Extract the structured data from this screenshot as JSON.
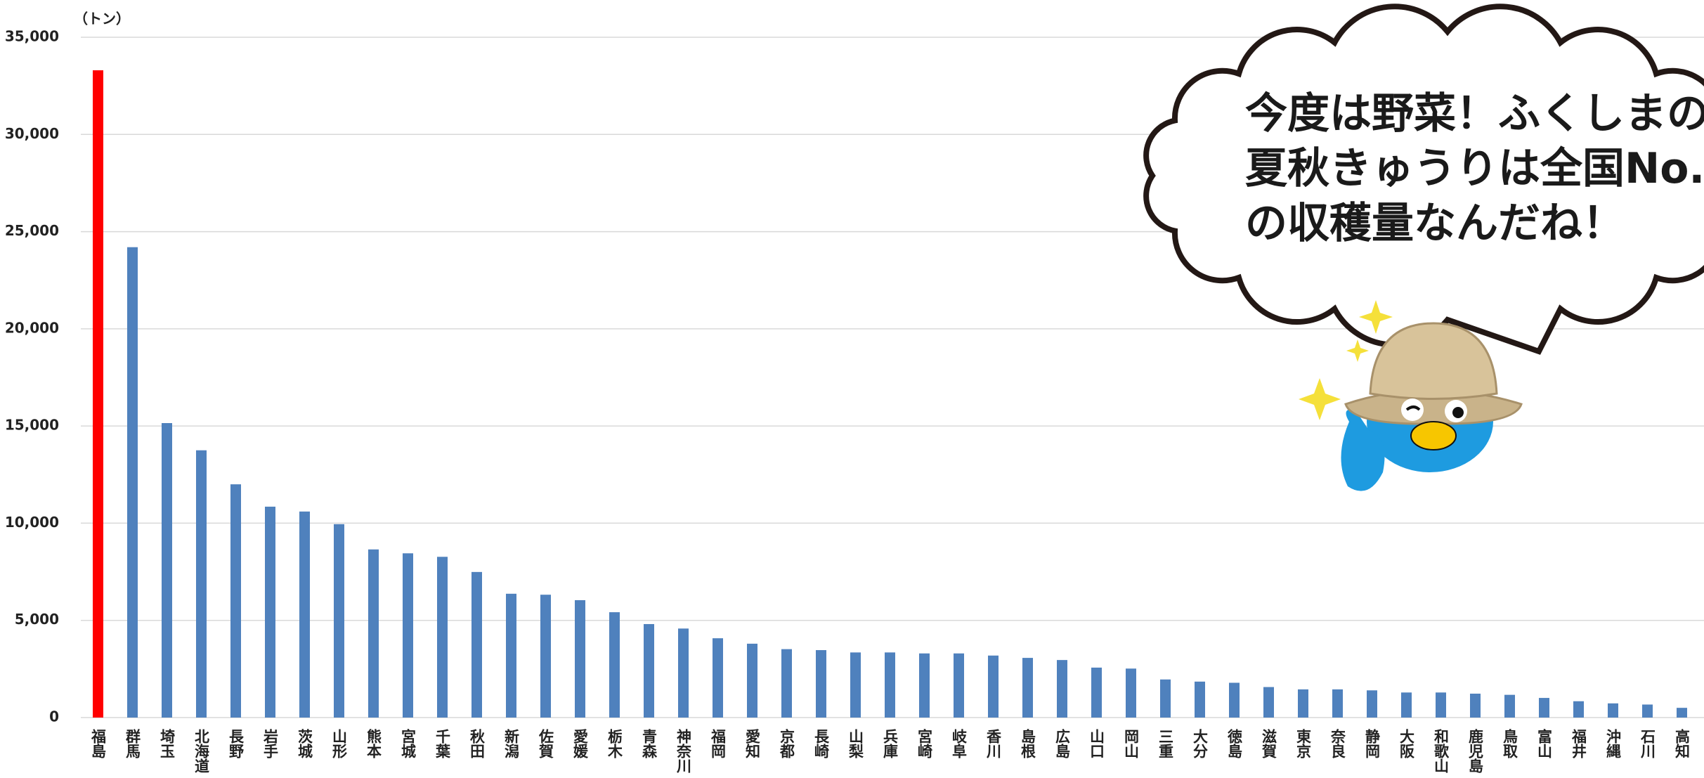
{
  "chart_data": {
    "type": "bar",
    "y_axis_label": "（トン）",
    "categories": [
      "福島",
      "群馬",
      "埼玉",
      "北海道",
      "長野",
      "岩手",
      "茨城",
      "山形",
      "熊本",
      "宮城",
      "千葉",
      "秋田",
      "新潟",
      "佐賀",
      "愛媛",
      "栃木",
      "青森",
      "神奈川",
      "福岡",
      "愛知",
      "京都",
      "長崎",
      "山梨",
      "兵庫",
      "宮崎",
      "岐阜",
      "香川",
      "島根",
      "広島",
      "山口",
      "岡山",
      "三重",
      "大分",
      "徳島",
      "滋賀",
      "東京",
      "奈良",
      "静岡",
      "大阪",
      "和歌山",
      "鹿児島",
      "鳥取",
      "富山",
      "福井",
      "沖縄",
      "石川",
      "高知"
    ],
    "values": [
      33300,
      24200,
      15150,
      13750,
      12000,
      10850,
      10600,
      9950,
      8650,
      8450,
      8270,
      7490,
      6370,
      6320,
      6040,
      5420,
      4810,
      4580,
      4080,
      3800,
      3520,
      3470,
      3350,
      3350,
      3300,
      3300,
      3190,
      3070,
      2960,
      2570,
      2520,
      1960,
      1850,
      1790,
      1570,
      1450,
      1450,
      1400,
      1290,
      1290,
      1230,
      1170,
      1010,
      840,
      730,
      670,
      500
    ],
    "color": "#4f81bd",
    "highlight": {
      "index": 0,
      "color": "#ff0000"
    },
    "ylim": [
      0,
      35000
    ],
    "yticks": [
      0,
      {
        "value": 5000,
        "label": "5,000"
      },
      {
        "value": 10000,
        "label": "10,000"
      },
      {
        "value": 15000,
        "label": "15,000"
      },
      {
        "value": 20000,
        "label": "20,000"
      },
      {
        "value": 25000,
        "label": "25,000"
      },
      {
        "value": 30000,
        "label": "30,000"
      },
      {
        "value": 35000,
        "label": "35,000"
      }
    ],
    "grid": true,
    "callout": [
      "今度は野菜！ふくしまの",
      "夏秋きゅうりは全国No.",
      "の収穫量なんだね！"
    ]
  }
}
